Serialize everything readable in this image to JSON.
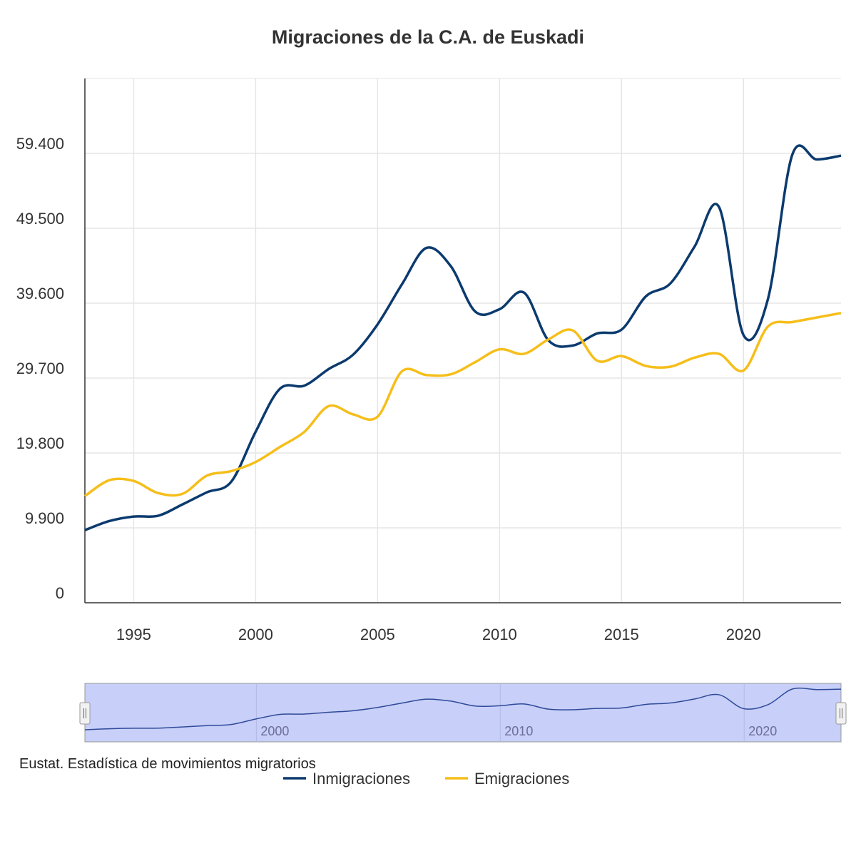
{
  "chart_data": {
    "type": "line",
    "title": "Migraciones de la C.A. de Euskadi",
    "xlabel": "",
    "ylabel": "",
    "x": [
      1993,
      1994,
      1995,
      1996,
      1997,
      1998,
      1999,
      2000,
      2001,
      2002,
      2003,
      2004,
      2005,
      2006,
      2007,
      2008,
      2009,
      2010,
      2011,
      2012,
      2013,
      2014,
      2015,
      2016,
      2017,
      2018,
      2019,
      2020,
      2021,
      2022,
      2023,
      2024
    ],
    "xlim": [
      1993,
      2024
    ],
    "ylim": [
      0,
      69300
    ],
    "x_ticks": [
      "1995",
      "2000",
      "2005",
      "2010",
      "2015",
      "2020"
    ],
    "y_ticks": [
      "0",
      "9.900",
      "19.800",
      "29.700",
      "39.600",
      "49.500",
      "59.400"
    ],
    "y_tick_values": [
      0,
      9900,
      19800,
      29700,
      39600,
      49500,
      59400
    ],
    "grid": true,
    "legend_position": "bottom",
    "series": [
      {
        "name": "Inmigraciones",
        "color": "#0b3a6e",
        "values": [
          9600,
          10800,
          11400,
          11500,
          13000,
          14600,
          16000,
          22600,
          28300,
          28700,
          30900,
          32800,
          36800,
          42100,
          46900,
          44500,
          38500,
          38800,
          41000,
          34700,
          34000,
          35600,
          36100,
          40500,
          42200,
          47100,
          52300,
          35400,
          40100,
          59200,
          58600,
          59100
        ]
      },
      {
        "name": "Emigraciones",
        "color": "#f6be1a",
        "values": [
          14100,
          16200,
          16100,
          14500,
          14400,
          16800,
          17400,
          18600,
          20600,
          22600,
          26000,
          24900,
          24600,
          30600,
          30100,
          30200,
          31800,
          33500,
          32900,
          34800,
          36000,
          32000,
          32600,
          31300,
          31200,
          32400,
          32900,
          30700,
          36500,
          37100,
          37700,
          38300
        ]
      }
    ],
    "navigator": {
      "x_ticks": [
        "2000",
        "2010",
        "2020"
      ],
      "fill_color": "#c8cff8"
    }
  },
  "credits": "Eustat. Estadística de movimientos migratorios"
}
